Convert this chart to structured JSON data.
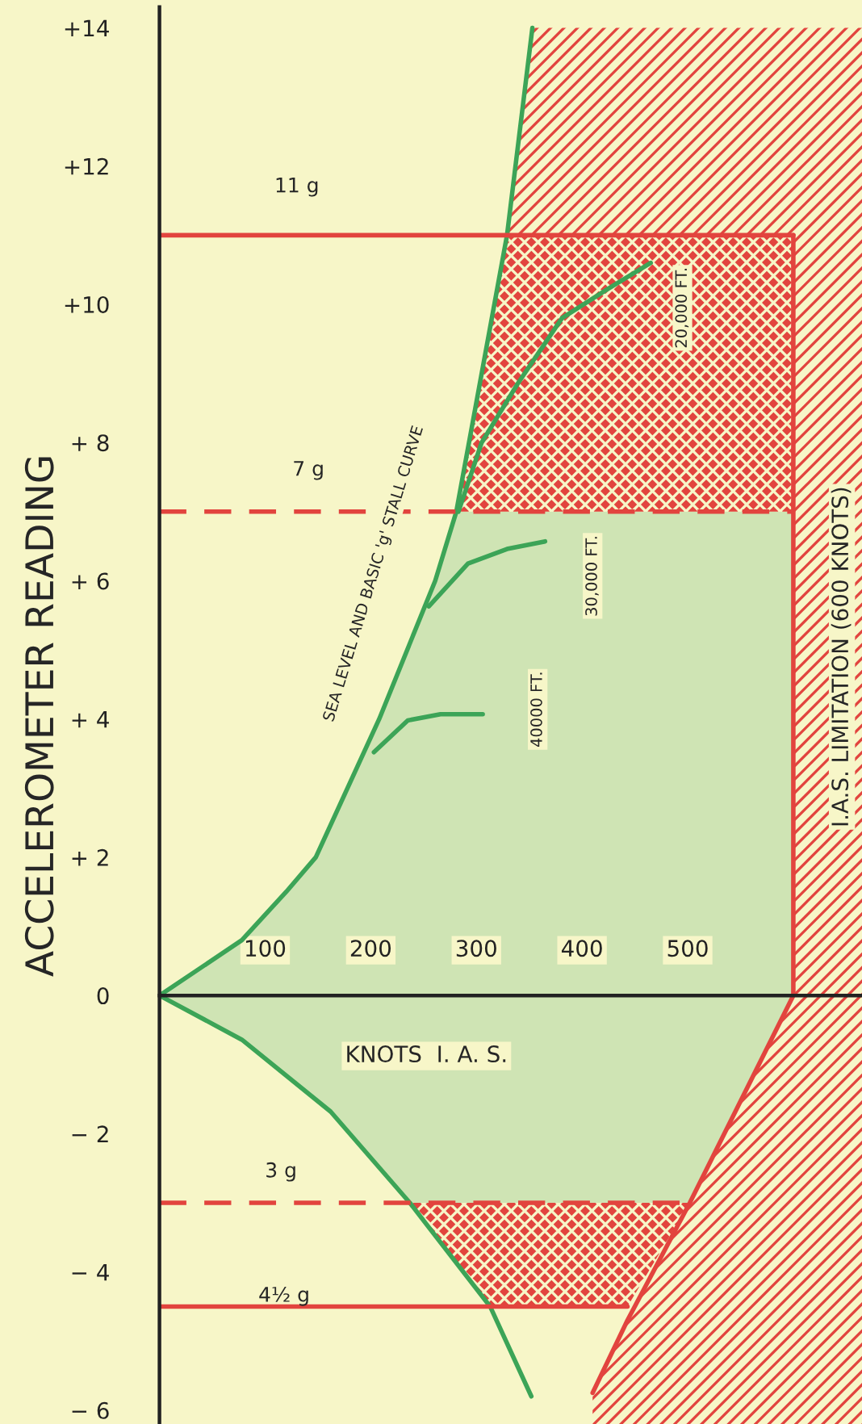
{
  "chart_data": {
    "type": "line",
    "ylabel": "ACCELEROMETER READING",
    "xlabel": "KNOTS  I. A. S.",
    "xlim": [
      0,
      665
    ],
    "xticks": [
      100,
      200,
      300,
      400,
      500
    ],
    "ylim": [
      -6.2,
      14.3
    ],
    "yticks": [
      {
        "value": 14,
        "label": "+14"
      },
      {
        "value": 12,
        "label": "+12"
      },
      {
        "value": 10,
        "label": "+10"
      },
      {
        "value": 8,
        "label": "+ 8"
      },
      {
        "value": 6,
        "label": "+ 6"
      },
      {
        "value": 4,
        "label": "+ 4"
      },
      {
        "value": 2,
        "label": "+ 2"
      },
      0,
      {
        "value": -2,
        "label": "− 2"
      },
      {
        "value": -4,
        "label": "− 4"
      },
      {
        "value": -6,
        "label": "− 6"
      }
    ],
    "marker": "none",
    "series": [
      {
        "color": "#3ca457",
        "line_style": "solid",
        "x": [
          0,
          78,
          120,
          148,
          208,
          261,
          281,
          329,
          353
        ],
        "values": [
          0,
          0.8,
          1.5,
          2,
          4,
          6,
          7,
          11,
          14
        ]
      },
      {
        "color": "#3ca457",
        "line_style": "solid",
        "x": [
          0,
          78,
          162,
          237,
          313,
          352
        ],
        "values": [
          0,
          -0.64,
          -1.68,
          -3,
          -4.5,
          -5.8
        ]
      },
      {
        "color": "#3ca457",
        "line_style": "solid",
        "x": [
          283,
          305,
          339,
          381,
          422,
          465
        ],
        "values": [
          7,
          8,
          8.85,
          9.8,
          10.2,
          10.6
        ]
      },
      {
        "color": "#3ca457",
        "line_style": "solid",
        "x": [
          255,
          292,
          329,
          365
        ],
        "values": [
          5.63,
          6.25,
          6.46,
          6.57
        ]
      },
      {
        "color": "#3ca457",
        "line_style": "solid",
        "x": [
          203,
          235,
          266,
          306
        ],
        "values": [
          3.52,
          3.98,
          4.07,
          4.07
        ]
      },
      {
        "color": "#e2443e",
        "line_style": "solid",
        "x": [
          410,
          443,
          502,
          600,
          600
        ],
        "values": [
          -5.75,
          -4.7,
          -3,
          0,
          11
        ]
      },
      {
        "color": "#e2443e",
        "line_style": "solid",
        "x": [
          0,
          600
        ],
        "values": [
          11,
          11
        ]
      },
      {
        "color": "#e2443e",
        "line_style": "dashed",
        "x": [
          0,
          600
        ],
        "values": [
          7,
          7
        ]
      },
      {
        "color": "#e2443e",
        "line_style": "dashed",
        "x": [
          0,
          502
        ],
        "values": [
          -3,
          -3
        ]
      },
      {
        "color": "#e2443e",
        "line_style": "solid",
        "x": [
          0,
          443
        ],
        "values": [
          -4.5,
          -4.5
        ]
      }
    ],
    "annotations": [
      "11 g",
      "7 g",
      "3 g",
      "4½ g",
      "SEA LEVEL AND BASIC 'g' STALL CURVE",
      "20,000 FT.",
      "30,000 FT.",
      "40000 FT.",
      "I.A.S. LIMITATION (600 KNOTS)"
    ]
  }
}
